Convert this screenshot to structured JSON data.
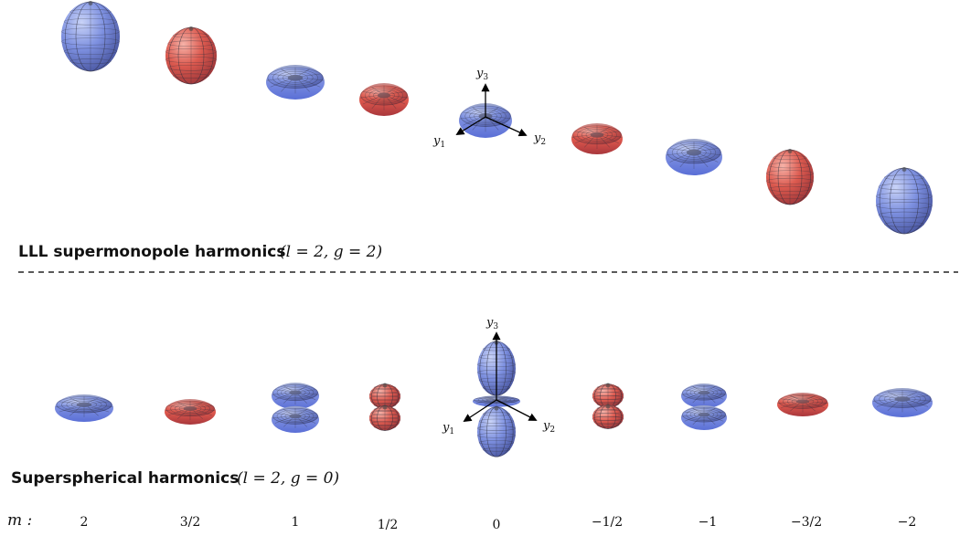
{
  "top_panel": {
    "caption_text": "LLL supermonopole harmonics",
    "caption_params": "(l = 2,  g = 2)",
    "axes": {
      "y3": "y",
      "y3_sub": "3",
      "y1": "y",
      "y1_sub": "1",
      "y2": "y",
      "y2_sub": "2"
    },
    "shapes": [
      {
        "kind": "prolate",
        "color": "blue"
      },
      {
        "kind": "prolate",
        "color": "red"
      },
      {
        "kind": "torus",
        "color": "blue"
      },
      {
        "kind": "torus",
        "color": "red"
      },
      {
        "kind": "torus",
        "color": "blue"
      },
      {
        "kind": "torus",
        "color": "red"
      },
      {
        "kind": "torus",
        "color": "blue"
      },
      {
        "kind": "prolate",
        "color": "red"
      },
      {
        "kind": "prolate",
        "color": "blue"
      }
    ]
  },
  "bottom_panel": {
    "caption_text": "Superspherical harmonics",
    "caption_params": "(l = 2,  g = 0)",
    "axes": {
      "y3": "y",
      "y3_sub": "3",
      "y1": "y",
      "y1_sub": "1",
      "y2": "y",
      "y2_sub": "2"
    },
    "shapes": [
      {
        "kind": "torus",
        "color": "blue"
      },
      {
        "kind": "torus",
        "color": "red"
      },
      {
        "kind": "double-torus",
        "color": "blue"
      },
      {
        "kind": "double-lobe",
        "color": "red"
      },
      {
        "kind": "dz2",
        "color": "blue"
      },
      {
        "kind": "double-lobe",
        "color": "red"
      },
      {
        "kind": "double-torus",
        "color": "blue"
      },
      {
        "kind": "torus",
        "color": "red"
      },
      {
        "kind": "torus",
        "color": "blue"
      }
    ]
  },
  "m_row": {
    "prefix": "m :",
    "labels": [
      "2",
      "3/2",
      "1",
      "1/2",
      "0",
      "−1/2",
      "−1",
      "−3/2",
      "−2"
    ]
  },
  "colors": {
    "blue_light": "#a9b8f0",
    "blue_mid": "#6f84dc",
    "blue_dark": "#3f4c9e",
    "red_light": "#f09a8e",
    "red_mid": "#d9544a",
    "red_dark": "#8e2f36",
    "grid": "#2e2e3c"
  }
}
